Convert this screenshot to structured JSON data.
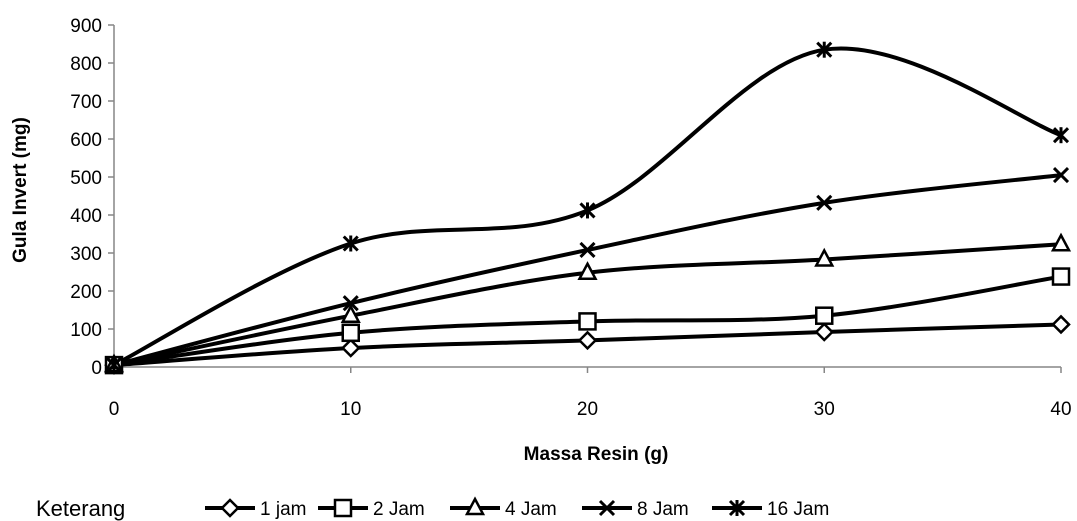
{
  "chart_data": {
    "type": "line",
    "smooth": true,
    "title": "",
    "xlabel": "Massa Resin (g)",
    "ylabel": "Gula Invert (mg)",
    "xlim": [
      0,
      40
    ],
    "ylim": [
      0,
      900
    ],
    "xticks": [
      "0",
      "10",
      "20",
      "30",
      "40"
    ],
    "yticks": [
      "0",
      "100",
      "200",
      "300",
      "400",
      "500",
      "600",
      "700",
      "800",
      "900"
    ],
    "grid": false,
    "legend_position": "bottom",
    "legend_prefix": "Keterang",
    "x": [
      0,
      10,
      20,
      30,
      40
    ],
    "series": [
      {
        "name": "1 jam",
        "marker": "diamond",
        "values": [
          5,
          50,
          70,
          92,
          112
        ]
      },
      {
        "name": "2 Jam",
        "marker": "square",
        "values": [
          5,
          90,
          120,
          135,
          238
        ]
      },
      {
        "name": "4 Jam",
        "marker": "triangle",
        "values": [
          5,
          135,
          248,
          283,
          323
        ]
      },
      {
        "name": "8 Jam",
        "marker": "x",
        "values": [
          5,
          168,
          308,
          432,
          505
        ]
      },
      {
        "name": "16 Jam",
        "marker": "star",
        "values": [
          5,
          325,
          412,
          835,
          610
        ]
      }
    ]
  }
}
